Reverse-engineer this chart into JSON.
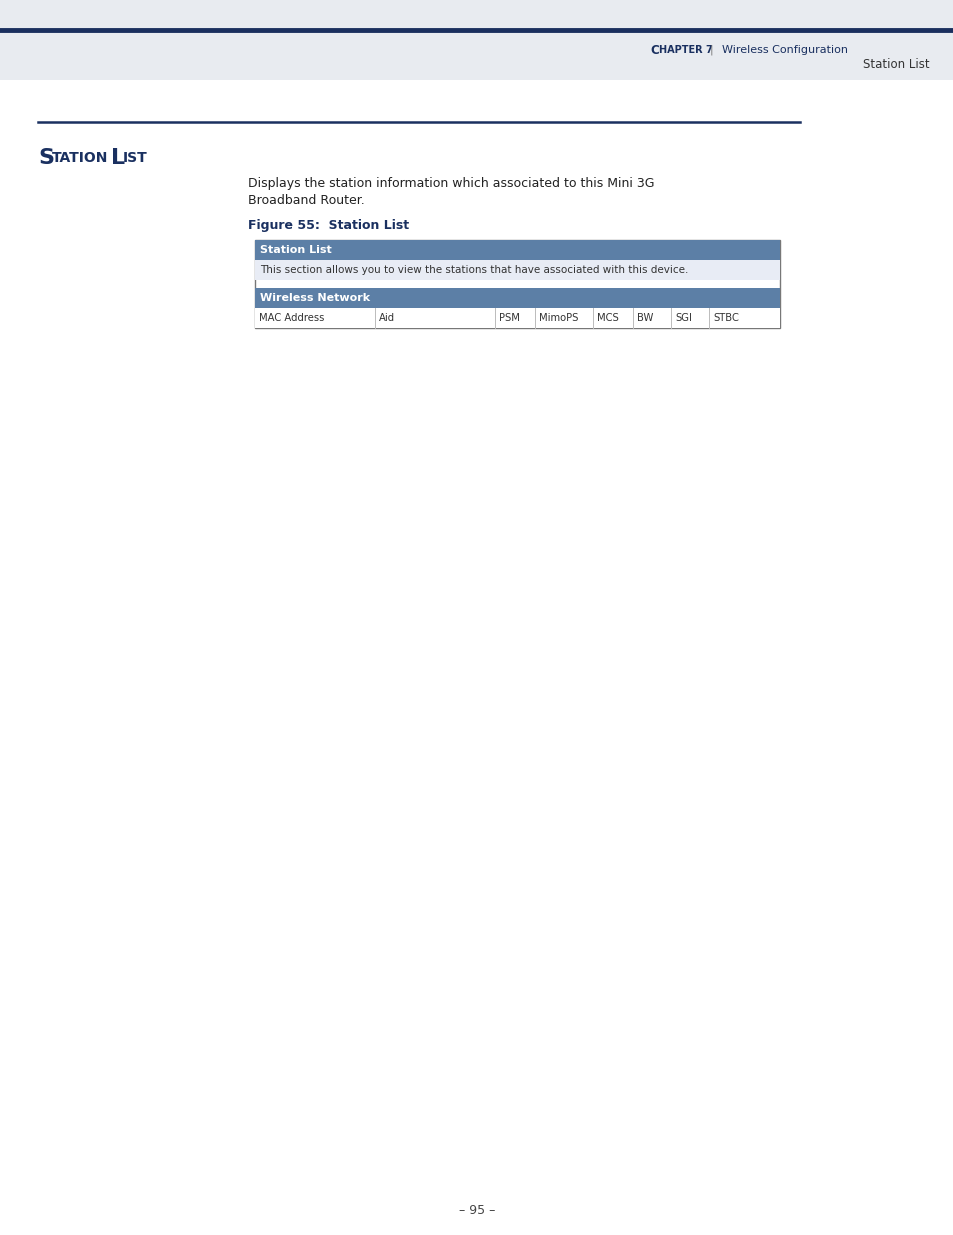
{
  "page_bg": "#ffffff",
  "header_bg": "#e8ebf0",
  "header_top_line_color": "#1a2f5e",
  "header_chapter_bold": "C",
  "header_chapter_smallcaps": "HAPTER",
  "header_chapter_num": " 7",
  "header_pipe": "  |  ",
  "header_right_text": "Wireless Configuration",
  "header_sub_text": "Station List",
  "header_text_color": "#1a3060",
  "section_title_S": "S",
  "section_title_rest": "TATION ",
  "section_title_L": "L",
  "section_title_rest2": "IST",
  "section_title_color": "#1a3060",
  "section_line_color": "#1a3060",
  "body_text_line1": "Displays the station information which associated to this Mini 3G",
  "body_text_line2": "Broadband Router.",
  "figure_label": "Figure 55:  Station List",
  "figure_label_color": "#1a3060",
  "station_list_header_bg": "#5c7fa6",
  "station_list_header_text": "Station List",
  "station_list_header_text_color": "#ffffff",
  "desc_row_bg": "#e8ecf5",
  "desc_row_text": "This section allows you to view the stations that have associated with this device.",
  "desc_row_text_color": "#333333",
  "wireless_header_bg": "#5c7fa6",
  "wireless_header_text": "Wireless Network",
  "wireless_header_text_color": "#ffffff",
  "col_headers": [
    "MAC Address",
    "Aid",
    "PSM",
    "MimoPS",
    "MCS",
    "BW",
    "SGI",
    "STBC"
  ],
  "col_header_text_color": "#333333",
  "col_row_bg": "#ffffff",
  "page_number": "– 95 –",
  "page_number_color": "#444444",
  "table_outer_border": "#777777"
}
